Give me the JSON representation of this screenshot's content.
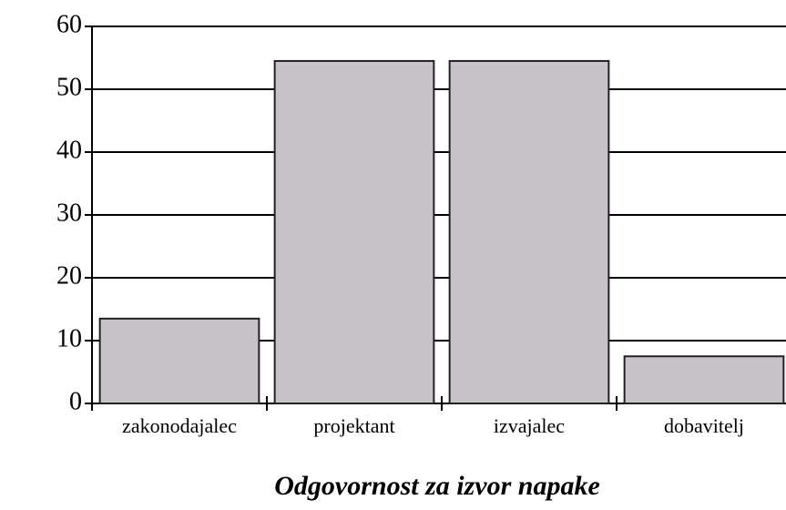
{
  "chart_data": {
    "type": "bar",
    "title": "Odgovornost za izvor napake",
    "categories": [
      "zakonodajalec",
      "projektant",
      "izvajalec",
      "dobavitelj"
    ],
    "values": [
      13.5,
      54.5,
      54.5,
      7.5
    ],
    "color": "#c8c3c8",
    "ylim": [
      0,
      60
    ],
    "yticks": [
      0,
      10,
      20,
      30,
      40,
      50,
      60
    ],
    "grid": true
  }
}
